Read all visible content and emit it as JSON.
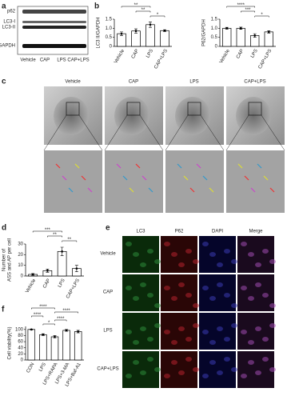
{
  "figure": {
    "labels": [
      "a",
      "b",
      "c",
      "d",
      "e",
      "f"
    ]
  },
  "blot": {
    "rows": [
      "p62",
      "LC3-I",
      "LC3-II",
      "GAPDH"
    ],
    "lanes": [
      "Vehicle",
      "CAP",
      "LPS",
      "CAP+LPS"
    ]
  },
  "tem": {
    "columns": [
      "Vehicle",
      "CAP",
      "LPS",
      "CAP+LPS"
    ]
  },
  "immunofluorescence": {
    "columns": [
      "LC3",
      "P62",
      "DAPI",
      "Merge"
    ],
    "rows": [
      "Vehicle",
      "CAP",
      "LPS",
      "CAP+LPS"
    ]
  },
  "chart_data": [
    {
      "type": "bar",
      "ylabel": "LC3 II/GAPDH",
      "categories": [
        "Vehicle",
        "CAP",
        "LPS",
        "CAP+LPS"
      ],
      "values": [
        0.7,
        0.85,
        1.2,
        0.87
      ],
      "errors": [
        0.1,
        0.12,
        0.15,
        0.05
      ],
      "color": "#ffffff",
      "ylim": [
        0,
        1.5
      ],
      "yticks": [
        0,
        0.5,
        {
          "value": 1,
          "label": "1.0"
        },
        1.5
      ],
      "sig": [
        {
          "text": "**",
          "from": 0,
          "to": 2
        },
        {
          "text": "**",
          "from": 1,
          "to": 2
        },
        {
          "text": "*",
          "from": 2,
          "to": 3
        }
      ]
    },
    {
      "type": "bar",
      "ylabel": "P62/GAPDH",
      "categories": [
        "Vehicle",
        "CAP",
        "LPS",
        "CAP+LPS"
      ],
      "values": [
        1.0,
        1.0,
        0.6,
        0.8
      ],
      "errors": [
        0.05,
        0.06,
        0.1,
        0.07
      ],
      "color": "#ffffff",
      "ylim": [
        0,
        1.5
      ],
      "yticks": [
        0,
        0.5,
        {
          "value": 1,
          "label": "1.0"
        },
        1.5
      ],
      "sig": [
        {
          "text": "****",
          "from": 0,
          "to": 2
        },
        {
          "text": "***",
          "from": 1,
          "to": 2
        },
        {
          "text": "*",
          "from": 2,
          "to": 3
        }
      ]
    },
    {
      "type": "bar",
      "ylabel": [
        "Number of",
        "ASS and AP per cell"
      ],
      "categories": [
        "Vehicle",
        "CAP",
        "LPS",
        "CAP+LPS"
      ],
      "values": [
        1.5,
        5,
        23,
        7
      ],
      "errors": [
        0.8,
        1.5,
        4,
        3
      ],
      "color": "#ffffff",
      "ylim": [
        0,
        30
      ],
      "yticks": [
        0,
        10,
        20,
        30
      ],
      "sig": [
        {
          "text": "***",
          "from": 0,
          "to": 2
        },
        {
          "text": "**",
          "from": 1,
          "to": 2
        },
        {
          "text": "**",
          "from": 2,
          "to": 3
        }
      ]
    },
    {
      "type": "bar",
      "ylabel": "Cell viability(%)",
      "categories": [
        "CON",
        "LPS",
        "LPS+RAPA",
        "LPS+3-MA",
        "LPS+Baf-A1"
      ],
      "values": [
        100,
        83,
        76,
        97,
        93
      ],
      "errors": [
        1,
        3,
        4,
        3,
        4
      ],
      "color": "#ffffff",
      "ylim": [
        0,
        110
      ],
      "yticks": [
        0,
        20,
        40,
        60,
        80,
        100
      ],
      "sig": [
        {
          "text": "****",
          "from": 0,
          "to": 2
        },
        {
          "text": "****",
          "from": 2,
          "to": 4
        },
        {
          "text": "****",
          "from": 0,
          "to": 1
        },
        {
          "text": "****",
          "from": 2,
          "to": 3
        },
        {
          "text": "*",
          "from": 1,
          "to": 2
        }
      ]
    }
  ]
}
